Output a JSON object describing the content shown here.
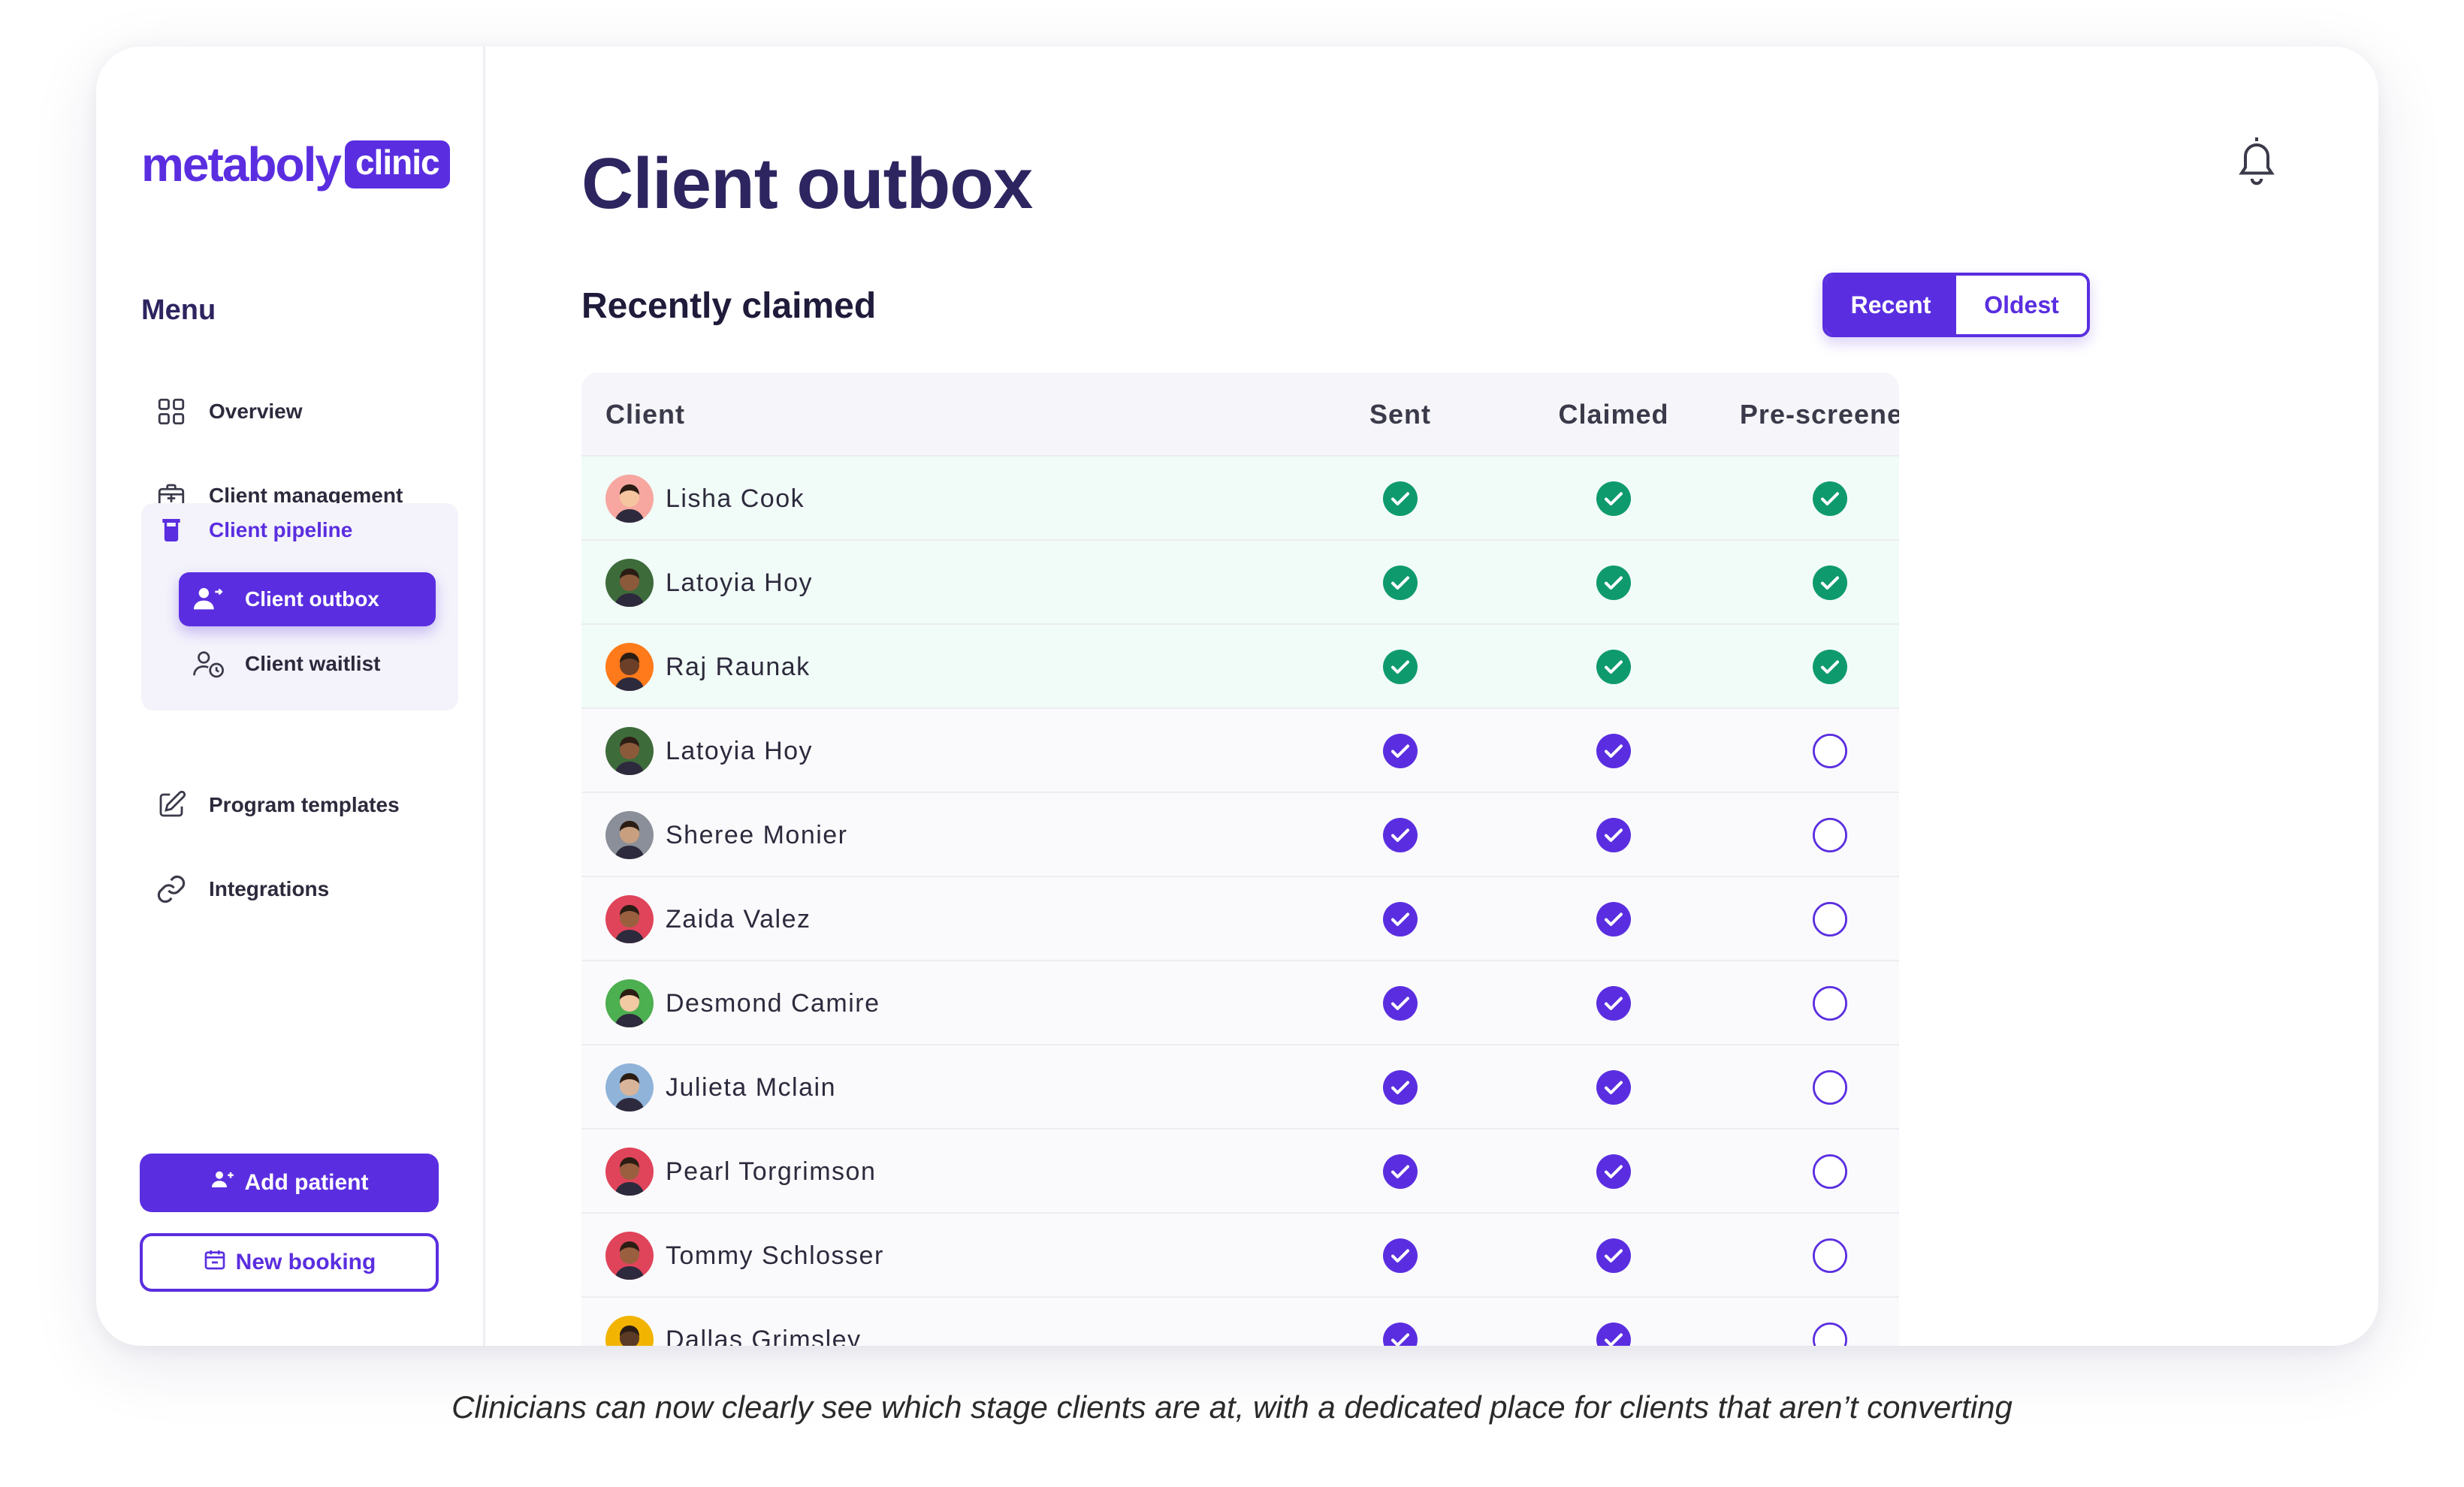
{
  "brand": {
    "name": "metaboly",
    "badge": "clinic"
  },
  "sidebar": {
    "menu_title": "Menu",
    "items": [
      {
        "label": "Overview",
        "icon": "grid-icon"
      },
      {
        "label": "Client management",
        "icon": "medical-briefcase-icon"
      },
      {
        "label": "Client pipeline",
        "icon": "pipeline-icon"
      },
      {
        "label": "Program templates",
        "icon": "edit-icon"
      },
      {
        "label": "Integrations",
        "icon": "link-icon"
      }
    ],
    "sub_items": [
      {
        "label": "Client outbox",
        "icon": "user-send-icon",
        "active": true
      },
      {
        "label": "Client waitlist",
        "icon": "user-clock-icon",
        "active": false
      }
    ],
    "add_patient": "Add patient",
    "new_booking": "New booking"
  },
  "page": {
    "title": "Client outbox",
    "section_title": "Recently claimed",
    "sort": {
      "recent": "Recent",
      "oldest": "Oldest",
      "selected": "Recent"
    }
  },
  "table": {
    "columns": [
      "Client",
      "Sent",
      "Claimed",
      "Pre-screened"
    ],
    "rows": [
      {
        "name": "Lisha Cook",
        "sent": true,
        "claimed": true,
        "prescreened": true
      },
      {
        "name": "Latoyia Hoy",
        "sent": true,
        "claimed": true,
        "prescreened": true
      },
      {
        "name": "Raj Raunak",
        "sent": true,
        "claimed": true,
        "prescreened": true
      },
      {
        "name": "Latoyia Hoy",
        "sent": true,
        "claimed": true,
        "prescreened": false
      },
      {
        "name": "Sheree Monier",
        "sent": true,
        "claimed": true,
        "prescreened": false
      },
      {
        "name": "Zaida Valez",
        "sent": true,
        "claimed": true,
        "prescreened": false
      },
      {
        "name": "Desmond Camire",
        "sent": true,
        "claimed": true,
        "prescreened": false
      },
      {
        "name": "Julieta Mclain",
        "sent": true,
        "claimed": true,
        "prescreened": false
      },
      {
        "name": "Pearl Torgrimson",
        "sent": true,
        "claimed": true,
        "prescreened": false
      },
      {
        "name": "Tommy Schlosser",
        "sent": true,
        "claimed": true,
        "prescreened": false
      },
      {
        "name": "Dallas Grimsley",
        "sent": true,
        "claimed": true,
        "prescreened": false
      }
    ]
  },
  "caption": "Clinicians can now clearly see which stage clients are at, with a dedicated place for clients that aren’t converting",
  "colors": {
    "accent": "#5a2ee0",
    "complete": "#0f9a6e",
    "complete_row": "#f1fbf7"
  }
}
